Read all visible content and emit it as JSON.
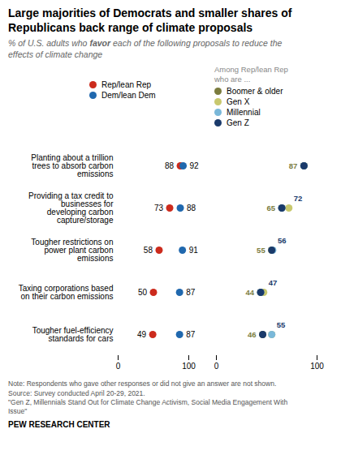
{
  "chart_data": [
    {
      "type": "dot",
      "title": "Large majorities of Democrats and smaller shares of\nRepublicans back range of climate proposals",
      "subtitle": [
        "% of U.S. adults who ",
        "favor",
        " each of the following proposals to reduce the\neffects of climate change"
      ],
      "categories": [
        "Planting about a trillion\ntrees to absorb carbon\nemissions",
        "Providing a tax credit to\nbusinesses for\ndeveloping carbon\ncapture/storage",
        "Tougher restrictions on\npower plant carbon\nemissions",
        "Taxing corporations based\non their carbon emissions",
        "Tougher fuel-efficiency\nstandards for cars"
      ],
      "series": [
        {
          "name": "Rep/lean Rep",
          "color": "#cc2b1d",
          "values": [
            88,
            73,
            58,
            50,
            49
          ]
        },
        {
          "name": "Dem/lean Dem",
          "color": "#2068ae",
          "values": [
            92,
            88,
            91,
            87,
            87
          ]
        }
      ],
      "xlim": [
        0,
        100
      ],
      "xticks": [
        0,
        100
      ],
      "legend": "top",
      "data_labels": true,
      "note": "Note: Respondents who gave other responses or did not give an answer are not shown.\nSource: Survey conducted April 20-29, 2021.\n\"Gen Z, Millennials Stand Out for Climate Change Activism, Social Media Engagement With\nIssue\"",
      "source": "PEW RESEARCH CENTER"
    },
    {
      "type": "dot",
      "legend_title": "Among Rep/lean Rep\nwho are ...",
      "categories": [
        "Planting about a trillion\ntrees to absorb carbon\nemissions",
        "Providing a tax credit to\nbusinesses for\ndeveloping carbon\ncapture/storage",
        "Tougher restrictions on\npower plant carbon\nemissions",
        "Taxing corporations based\non their carbon emissions",
        "Tougher fuel-efficiency\nstandards for cars"
      ],
      "series": [
        {
          "name": "Boomer & older",
          "color": "#7b7c3e",
          "values": [
            87,
            65,
            55,
            44,
            46
          ]
        },
        {
          "name": "Gen X",
          "color": "#c8c86e",
          "values": [
            87,
            72,
            55,
            47,
            55
          ]
        },
        {
          "name": "Millennial",
          "color": "#7ab8d9",
          "values": [
            87,
            65,
            56,
            44,
            55
          ]
        },
        {
          "name": "Gen Z",
          "color": "#1a3a6b",
          "values": [
            87,
            65,
            55,
            44,
            46
          ]
        }
      ],
      "xlim": [
        0,
        100
      ],
      "xticks": [
        0,
        100
      ],
      "legend": "top",
      "low_labels": [
        87,
        65,
        55,
        44,
        46
      ],
      "high_labels": [
        null,
        72,
        56,
        47,
        55
      ]
    }
  ]
}
